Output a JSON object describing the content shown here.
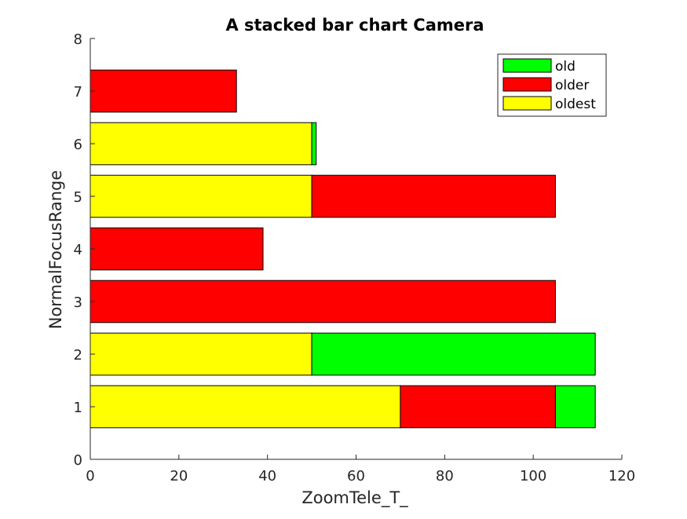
{
  "chart_data": {
    "type": "bar",
    "orientation": "horizontal",
    "stacked": true,
    "title": "A stacked bar chart Camera",
    "xlabel": "ZoomTele_T_",
    "ylabel": "NormalFocusRange",
    "xlim": [
      0,
      120
    ],
    "ylim": [
      0,
      8
    ],
    "x_ticks": [
      "0",
      "20",
      "40",
      "60",
      "80",
      "100",
      "120"
    ],
    "y_ticks": [
      "0",
      "1",
      "2",
      "3",
      "4",
      "5",
      "6",
      "7",
      "8"
    ],
    "categories": [
      1,
      2,
      3,
      4,
      5,
      6,
      7
    ],
    "series": [
      {
        "name": "oldest",
        "color": "#ffff00",
        "values": [
          70,
          50,
          0,
          0,
          50,
          50,
          0
        ]
      },
      {
        "name": "older",
        "color": "#ff0000",
        "values": [
          35,
          0,
          105,
          39,
          55,
          0,
          33
        ]
      },
      {
        "name": "old",
        "color": "#00ff00",
        "values": [
          9,
          64,
          0,
          0,
          0,
          1,
          0
        ]
      }
    ],
    "legend": {
      "position": "top-right",
      "entries": [
        "old",
        "older",
        "oldest"
      ]
    },
    "grid": false
  }
}
